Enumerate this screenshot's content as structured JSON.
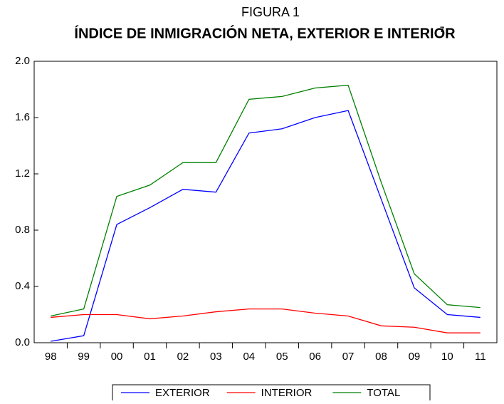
{
  "chart_data": {
    "type": "line",
    "title_prefix": "FIGURA 1",
    "title": "ÍNDICE DE INMIGRACIÓN NETA, EXTERIOR E INTERIOR",
    "title_footnote": "7",
    "categories": [
      "98",
      "99",
      "00",
      "01",
      "02",
      "03",
      "04",
      "05",
      "06",
      "07",
      "08",
      "09",
      "10",
      "11"
    ],
    "series": [
      {
        "name": "EXTERIOR",
        "color": "#0000ff",
        "values": [
          0.01,
          0.05,
          0.84,
          0.96,
          1.09,
          1.07,
          1.49,
          1.52,
          1.6,
          1.65,
          1.02,
          0.39,
          0.2,
          0.18
        ]
      },
      {
        "name": "INTERIOR",
        "color": "#ff0000",
        "values": [
          0.18,
          0.2,
          0.2,
          0.17,
          0.19,
          0.22,
          0.24,
          0.24,
          0.21,
          0.19,
          0.12,
          0.11,
          0.07,
          0.07
        ]
      },
      {
        "name": "TOTAL",
        "color": "#008000",
        "values": [
          0.19,
          0.24,
          1.04,
          1.12,
          1.28,
          1.28,
          1.73,
          1.75,
          1.81,
          1.83,
          1.14,
          0.49,
          0.27,
          0.25
        ]
      }
    ],
    "ylim": [
      0,
      2
    ],
    "yticks": [
      {
        "value": 0,
        "label": "0.0"
      },
      0.4,
      0.8,
      1.2,
      1.6,
      {
        "value": 2,
        "label": "2.0"
      }
    ],
    "legend": "bottom"
  }
}
